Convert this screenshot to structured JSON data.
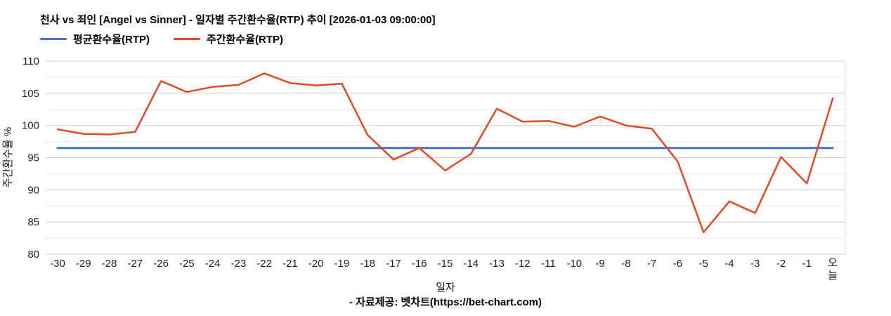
{
  "title": "천사 vs 죄인 [Angel vs Sinner] - 일자별 주간환수율(RTP) 추이 [2026-01-03 09:00:00]",
  "footer": "- 자료제공: 벳차트(https://bet-chart.com)",
  "legend": [
    {
      "label": "평균환수율(RTP)",
      "color": "#4472d4"
    },
    {
      "label": "주간환수율(RTP)",
      "color": "#e2482c"
    }
  ],
  "chart_data": {
    "type": "line",
    "title": "천사 vs 죄인 [Angel vs Sinner] - 일자별 주간환수율(RTP) 추이 [2026-01-03 09:00:00]",
    "xlabel": "일자",
    "ylabel": "주간환수율 %",
    "ylim": [
      80,
      110
    ],
    "ytick_step": 5,
    "grid_minor_step": 2.5,
    "grid": true,
    "legend_position": "top-left",
    "categories": [
      "-30",
      "-29",
      "-28",
      "-27",
      "-26",
      "-25",
      "-24",
      "-23",
      "-22",
      "-21",
      "-20",
      "-19",
      "-18",
      "-17",
      "-16",
      "-15",
      "-14",
      "-13",
      "-12",
      "-11",
      "-10",
      "-9",
      "-8",
      "-7",
      "-6",
      "-5",
      "-4",
      "-3",
      "-2",
      "-1",
      "오늘"
    ],
    "series": [
      {
        "name": "평균환수율(RTP)",
        "color": "#4472d4",
        "stroke_width": 3,
        "values": [
          96.5,
          96.5,
          96.5,
          96.5,
          96.5,
          96.5,
          96.5,
          96.5,
          96.5,
          96.5,
          96.5,
          96.5,
          96.5,
          96.5,
          96.5,
          96.5,
          96.5,
          96.5,
          96.5,
          96.5,
          96.5,
          96.5,
          96.5,
          96.5,
          96.5,
          96.5,
          96.5,
          96.5,
          96.5,
          96.5,
          96.5
        ]
      },
      {
        "name": "주간환수율(RTP)",
        "color": "#e2482c",
        "stroke_width": 2.5,
        "values": [
          99.4,
          98.7,
          98.6,
          99.0,
          106.9,
          105.2,
          106.0,
          106.3,
          108.1,
          106.6,
          106.2,
          106.5,
          98.5,
          94.7,
          96.5,
          93.0,
          95.6,
          102.6,
          100.6,
          100.7,
          99.8,
          101.4,
          100.0,
          99.5,
          94.4,
          83.4,
          88.2,
          86.4,
          95.1,
          91.0,
          104.2
        ]
      }
    ]
  }
}
